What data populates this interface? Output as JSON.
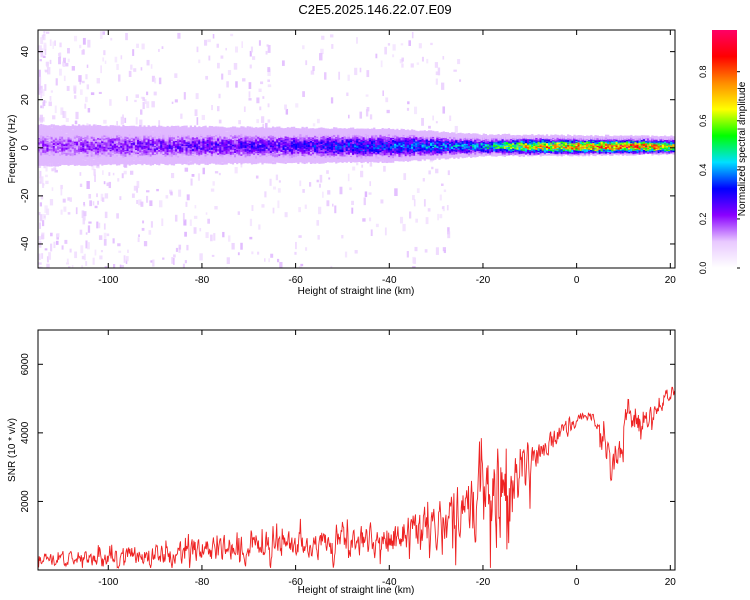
{
  "title": "C2E5.2025.146.22.07.E09",
  "chart_data": [
    {
      "type": "heatmap",
      "panel": "spectrogram",
      "xlabel": "Height of straight line (km)",
      "ylabel": "Frequency (Hz)",
      "xlim": [
        -115,
        21
      ],
      "ylim": [
        -50,
        49
      ],
      "xticks": [
        -100,
        -80,
        -60,
        -40,
        -20,
        0,
        20
      ],
      "yticks": [
        -40,
        -20,
        0,
        20,
        40
      ],
      "colorbar": {
        "label": "Normalized spectral amplitude",
        "range": [
          0.0,
          0.97
        ],
        "ticks": [
          "0.0",
          "0.2",
          "0.4",
          "0.6",
          "0.8"
        ],
        "colors": [
          "#ffffff",
          "#e8c8ff",
          "#8a00ff",
          "#0000ff",
          "#00e0ff",
          "#00ff00",
          "#ffff00",
          "#ff8c00",
          "#ff0000",
          "#ff0066"
        ]
      },
      "band": {
        "center_hz": 1,
        "halfwidth_hz": [
          {
            "x": -115,
            "hz": 5
          },
          {
            "x": -40,
            "hz": 4
          },
          {
            "x": -20,
            "hz": 2.5
          },
          {
            "x": 21,
            "hz": 2
          }
        ],
        "peak_amplitude": [
          {
            "x": -115,
            "amp": 0.2
          },
          {
            "x": -60,
            "amp": 0.3
          },
          {
            "x": -20,
            "amp": 0.45
          },
          {
            "x": -10,
            "amp": 0.75
          },
          {
            "x": 10,
            "amp": 0.9
          },
          {
            "x": 21,
            "amp": 0.8
          }
        ]
      }
    },
    {
      "type": "line",
      "panel": "snr",
      "xlabel": "Height of straight line (km)",
      "ylabel": "SNR (10 * v/v)",
      "xlim": [
        -115,
        21
      ],
      "ylim": [
        0,
        7000
      ],
      "xticks": [
        -100,
        -80,
        -60,
        -40,
        -20,
        0,
        20
      ],
      "yticks": [
        2000,
        4000,
        6000
      ],
      "color": "#ee2222",
      "envelope": [
        {
          "x": -115,
          "mean": 300,
          "spread": 400
        },
        {
          "x": -90,
          "mean": 450,
          "spread": 700
        },
        {
          "x": -70,
          "mean": 700,
          "spread": 900
        },
        {
          "x": -50,
          "mean": 800,
          "spread": 1000
        },
        {
          "x": -40,
          "mean": 900,
          "spread": 1200
        },
        {
          "x": -30,
          "mean": 1300,
          "spread": 1600
        },
        {
          "x": -22,
          "mean": 1800,
          "spread": 2400
        },
        {
          "x": -15,
          "mean": 2500,
          "spread": 4200
        },
        {
          "x": -12,
          "mean": 2800,
          "spread": 2500
        },
        {
          "x": -8,
          "mean": 3400,
          "spread": 900
        },
        {
          "x": -4,
          "mean": 3900,
          "spread": 700
        },
        {
          "x": 0,
          "mean": 4300,
          "spread": 500
        },
        {
          "x": 3,
          "mean": 4700,
          "spread": 500
        },
        {
          "x": 6,
          "mean": 3500,
          "spread": 1200
        },
        {
          "x": 8,
          "mean": 3000,
          "spread": 900
        },
        {
          "x": 11,
          "mean": 4600,
          "spread": 1400
        },
        {
          "x": 14,
          "mean": 4200,
          "spread": 700
        },
        {
          "x": 17,
          "mean": 4800,
          "spread": 800
        },
        {
          "x": 21,
          "mean": 5300,
          "spread": 500
        }
      ]
    }
  ]
}
